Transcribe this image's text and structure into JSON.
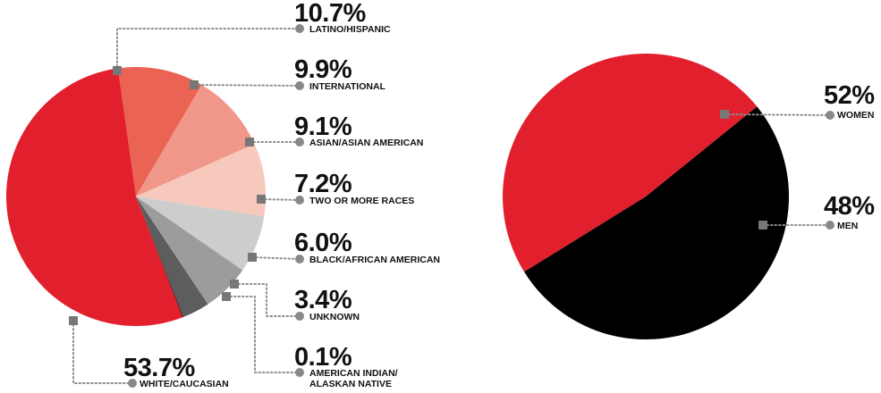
{
  "chart_data": [
    {
      "type": "pie",
      "slices": [
        {
          "label": "LATINO/HISPANIC",
          "value": 10.7,
          "display": "10.7%",
          "color": "#ea6353"
        },
        {
          "label": "INTERNATIONAL",
          "value": 9.9,
          "display": "9.9%",
          "color": "#f1978a"
        },
        {
          "label": "ASIAN/ASIAN AMERICAN",
          "value": 9.1,
          "display": "9.1%",
          "color": "#f7c8bc"
        },
        {
          "label": "TWO OR MORE RACES",
          "value": 7.2,
          "display": "7.2%",
          "color": "#cdcdcd"
        },
        {
          "label": "BLACK/AFRICAN AMERICAN",
          "value": 6.0,
          "display": "6.0%",
          "color": "#9c9c9c"
        },
        {
          "label": "UNKNOWN",
          "value": 3.4,
          "display": "3.4%",
          "color": "#5d5d5d"
        },
        {
          "label": "AMERICAN INDIAN/ ALASKAN NATIVE",
          "label_lines": [
            "AMERICAN INDIAN/",
            "ALASKAN NATIVE"
          ],
          "value": 0.1,
          "display": "0.1%",
          "color": "#111111"
        },
        {
          "label": "WHITE/CAUCASIAN",
          "value": 53.7,
          "display": "53.7%",
          "color": "#e21f2c"
        }
      ]
    },
    {
      "type": "pie",
      "slices": [
        {
          "label": "WOMEN",
          "value": 52,
          "display": "52%",
          "color": "#000000"
        },
        {
          "label": "MEN",
          "value": 48,
          "display": "48%",
          "color": "#e21f2c"
        }
      ]
    }
  ]
}
